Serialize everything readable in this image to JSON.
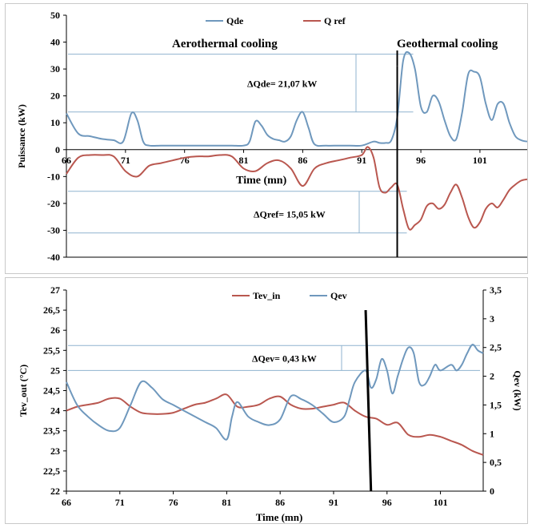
{
  "chart_data": [
    {
      "type": "line",
      "xlabel": "Time (mn)",
      "ylabel": "Puissance (kW)",
      "xlim": [
        66,
        105
      ],
      "ylim": [
        -40,
        50
      ],
      "xticks": [
        "66",
        "71",
        "76",
        "81",
        "86",
        "91",
        "96",
        "101"
      ],
      "yticks": [
        "-40",
        "-30",
        "-20",
        "-10",
        "0",
        "10",
        "20",
        "30",
        "40",
        "50"
      ],
      "legend_position": "top",
      "series": [
        {
          "name": "Qde",
          "color": "#6f98bd",
          "x": [
            66,
            67,
            68,
            69,
            70,
            70.8,
            71.5,
            72,
            72.5,
            73,
            74,
            75,
            76,
            77,
            78,
            79,
            80,
            81,
            81.5,
            82,
            82.5,
            83,
            83.5,
            84,
            84.5,
            85,
            85.5,
            86,
            86.5,
            87,
            88,
            89,
            90,
            91,
            92,
            92.5,
            93,
            93.5,
            94,
            94.5,
            95,
            95.5,
            96,
            96.5,
            97,
            97.5,
            98,
            98.5,
            99,
            99.5,
            100,
            100.5,
            101,
            101.5,
            102,
            102.5,
            103,
            103.5,
            104,
            104.5,
            105
          ],
          "y": [
            13.5,
            6,
            5,
            4,
            3.5,
            3,
            13.5,
            11,
            3,
            1.5,
            1.5,
            1.5,
            1.5,
            1.5,
            1.5,
            1.5,
            1.5,
            1.5,
            3,
            10.5,
            9,
            5.5,
            4,
            3.5,
            3,
            5,
            11,
            14,
            8,
            2,
            1.5,
            1.5,
            1.5,
            1.5,
            3,
            2.5,
            2.5,
            3.5,
            12,
            33,
            36,
            30,
            16,
            14,
            20,
            18,
            11,
            5,
            4,
            14,
            28,
            29,
            27,
            17,
            11,
            17,
            17,
            10,
            5,
            3.5,
            3
          ]
        },
        {
          "name": "Q ref",
          "color": "#b9574f",
          "x": [
            66,
            67,
            68,
            69,
            70,
            71,
            72,
            73,
            74,
            75,
            76,
            77,
            78,
            79,
            80,
            81,
            82,
            83,
            84,
            85,
            86,
            87,
            88,
            89,
            90,
            91,
            91.5,
            92,
            92.5,
            93,
            93.5,
            94,
            94.5,
            95,
            95.5,
            96,
            96.5,
            97,
            97.5,
            98,
            98.5,
            99,
            99.5,
            100,
            100.5,
            101,
            101.5,
            102,
            102.5,
            103,
            103.5,
            104,
            104.5,
            105
          ],
          "y": [
            -9,
            -3,
            -2,
            -2,
            -2.5,
            -8,
            -10,
            -6,
            -5,
            -4,
            -3,
            -2.5,
            -2.5,
            -2,
            -2.5,
            -7,
            -8,
            -5,
            -4,
            -7,
            -13.5,
            -7,
            -5,
            -4,
            -3,
            -2,
            1,
            -3,
            -14,
            -16,
            -14,
            -13,
            -22,
            -29.5,
            -28,
            -26,
            -21,
            -20,
            -22,
            -20.5,
            -16,
            -13,
            -18,
            -25,
            -29,
            -27,
            -22,
            -20,
            -21.5,
            -18.5,
            -15,
            -13,
            -11.5,
            -11
          ]
        }
      ],
      "annotations": [
        {
          "text": "Aerothermal cooling"
        },
        {
          "text": "Geothermal cooling"
        },
        {
          "text": "ΔQde= 21,07 kW"
        },
        {
          "text": "ΔQref= 15,05 kW"
        }
      ],
      "dimension_lines": [
        {
          "label": "ΔQde= 21,07 kW",
          "y_values": [
            35.5,
            14
          ]
        },
        {
          "label": "ΔQref= 15,05 kW",
          "y_values": [
            -15.5,
            -31
          ]
        }
      ],
      "switch_line_x": 94
    },
    {
      "type": "line",
      "xlabel": "Time (mn)",
      "ylabel": "Tev_out (°C)",
      "y2label": "Qev (kW)",
      "xlim": [
        66,
        105
      ],
      "ylim": [
        22,
        27
      ],
      "y2lim": [
        0,
        3.5
      ],
      "xticks": [
        "66",
        "71",
        "76",
        "81",
        "86",
        "91",
        "96",
        "101"
      ],
      "yticks": [
        "22",
        "22,5",
        "23",
        "23,5",
        "24",
        "24,5",
        "25",
        "25,5",
        "26",
        "26,5",
        "27"
      ],
      "y2ticks": [
        "0",
        "0,5",
        "1",
        "1,5",
        "2",
        "2,5",
        "3",
        "3,5"
      ],
      "legend_position": "top",
      "series": [
        {
          "name": "Tev_in",
          "color": "#b9574f",
          "axis": "left",
          "x": [
            66,
            67,
            68,
            69,
            70,
            71,
            72,
            73,
            74,
            75,
            76,
            77,
            78,
            79,
            80,
            81,
            82,
            83,
            84,
            85,
            86,
            87,
            88,
            89,
            90,
            91,
            92,
            93,
            94,
            95,
            96,
            97,
            98,
            99,
            100,
            101,
            102,
            103,
            104,
            105
          ],
          "y": [
            24,
            24.1,
            24.15,
            24.2,
            24.3,
            24.3,
            24.1,
            23.95,
            23.92,
            23.92,
            23.95,
            24.05,
            24.15,
            24.2,
            24.3,
            24.4,
            24.1,
            24.1,
            24.15,
            24.3,
            24.35,
            24.15,
            24.05,
            24.05,
            24.1,
            24.15,
            24.2,
            24,
            23.85,
            23.8,
            23.65,
            23.7,
            23.4,
            23.35,
            23.4,
            23.35,
            23.25,
            23.15,
            23,
            22.9
          ]
        },
        {
          "name": "Qev",
          "color": "#6f98bd",
          "axis": "right",
          "x": [
            66,
            67,
            68,
            69,
            70,
            71,
            72,
            73,
            74,
            75,
            76,
            77,
            78,
            79,
            80,
            81,
            81.5,
            82,
            83,
            84,
            85,
            86,
            87,
            88,
            89,
            90,
            91,
            92,
            92.5,
            93,
            94,
            94.5,
            95,
            95.5,
            96,
            96.5,
            97,
            97.5,
            98,
            98.5,
            99,
            99.5,
            100,
            100.5,
            101,
            102,
            102.5,
            103,
            103.5,
            104,
            104.5,
            105
          ],
          "y": [
            1.9,
            1.5,
            1.3,
            1.15,
            1.05,
            1.1,
            1.5,
            1.9,
            1.8,
            1.6,
            1.5,
            1.4,
            1.3,
            1.2,
            1.1,
            0.9,
            1.3,
            1.55,
            1.3,
            1.2,
            1.15,
            1.25,
            1.65,
            1.6,
            1.5,
            1.35,
            1.2,
            1.3,
            1.6,
            1.9,
            2.1,
            1.8,
            1.95,
            2.3,
            2.1,
            1.7,
            2.0,
            2.3,
            2.5,
            2.4,
            1.9,
            1.85,
            2.0,
            2.2,
            2.1,
            2.2,
            2.1,
            2.2,
            2.4,
            2.55,
            2.45,
            2.4
          ]
        }
      ],
      "annotations": [
        {
          "text": "ΔQev= 0,43 kW"
        }
      ],
      "dimension_lines": [
        {
          "label": "ΔQev= 0,43 kW",
          "y_values": [
            25.62,
            25.0
          ]
        }
      ],
      "switch_line": {
        "x1": 94,
        "y1": 26.5,
        "x2": 94.5,
        "y2": 22
      }
    }
  ]
}
